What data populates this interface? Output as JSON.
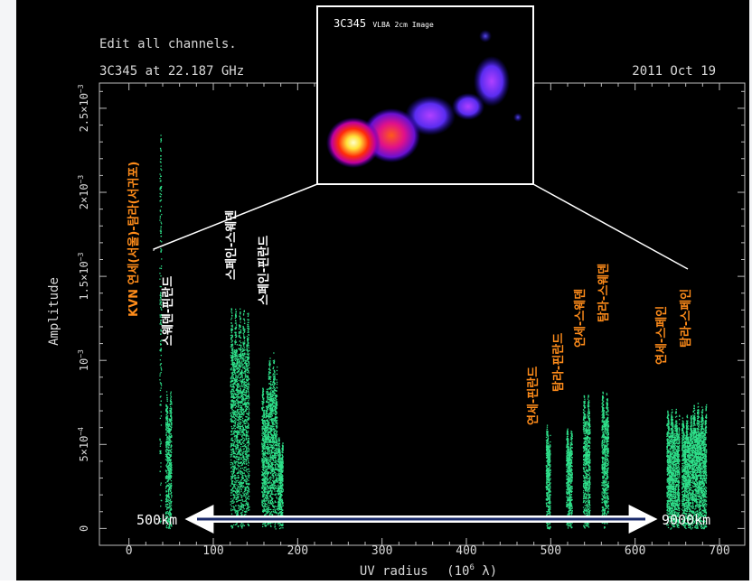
{
  "header": {
    "left_line1": "Edit all channels.",
    "left_line2": "3C345 at 22.187 GHz",
    "date": "2011 Oct 19"
  },
  "inset": {
    "title_source": "3C345",
    "title_rest": "VLBA 2cm Image"
  },
  "chart_data": {
    "type": "scatter",
    "xlabel_text": "UV radius",
    "xlabel_units": "(10",
    "xlabel_exp": "6",
    "xlabel_tail": " λ)",
    "ylabel": "Amplitude",
    "xlim": [
      -35,
      730
    ],
    "ylim": [
      -0.0001,
      0.00265
    ],
    "x_ticks": [
      0,
      100,
      200,
      300,
      400,
      500,
      600,
      700
    ],
    "y_ticks": [
      {
        "value": 0,
        "mant": "0",
        "exp": ""
      },
      {
        "value": 0.0005,
        "mant": "5×10",
        "exp": "−4"
      },
      {
        "value": 0.001,
        "mant": "10",
        "exp": "−3"
      },
      {
        "value": 0.0015,
        "mant": "1.5×10",
        "exp": "−3"
      },
      {
        "value": 0.002,
        "mant": "2×10",
        "exp": "−3"
      },
      {
        "value": 0.0025,
        "mant": "2.5×10",
        "exp": "−3"
      }
    ],
    "color": "#2fe08a",
    "clusters": [
      {
        "x": [
          36,
          38
        ],
        "y_max": 0.00235
      },
      {
        "x": [
          43,
          50
        ],
        "y_max": 0.00082
      },
      {
        "x": [
          120,
          142
        ],
        "y_max": 0.00132
      },
      {
        "x": [
          157,
          165
        ],
        "y_max": 0.00085
      },
      {
        "x": [
          165,
          175
        ],
        "y_max": 0.00105
      },
      {
        "x": [
          176,
          182
        ],
        "y_max": 0.00055
      },
      {
        "x": [
          494,
          499
        ],
        "y_max": 0.00062
      },
      {
        "x": [
          518,
          525
        ],
        "y_max": 0.0006
      },
      {
        "x": [
          538,
          546
        ],
        "y_max": 0.0008
      },
      {
        "x": [
          560,
          568
        ],
        "y_max": 0.00082
      },
      {
        "x": [
          637,
          652
        ],
        "y_max": 0.00072
      },
      {
        "x": [
          655,
          668
        ],
        "y_max": 0.00068
      },
      {
        "x": [
          668,
          684
        ],
        "y_max": 0.00075
      }
    ],
    "baseline_labels": [
      {
        "text": "KVN",
        "color": "#ff8c1a"
      },
      {
        "text": "연세(서울)-탐라(서귀포)",
        "color": "#ff8c1a"
      },
      {
        "text": "스웨덴-핀란드",
        "color": "#ffffff"
      },
      {
        "text": "스페인-스웨덴",
        "color": "#ffffff"
      },
      {
        "text": "스페인-핀란드",
        "color": "#ffffff"
      },
      {
        "text": "연세-핀란드",
        "color": "#ff8c1a"
      },
      {
        "text": "탐라-핀란드",
        "color": "#ff8c1a"
      },
      {
        "text": "연세-스웨덴",
        "color": "#ff8c1a"
      },
      {
        "text": "탐라-스웨덴",
        "color": "#ff8c1a"
      },
      {
        "text": "연세-스페인",
        "color": "#ff8c1a"
      },
      {
        "text": "탐라-스페인",
        "color": "#ff8c1a"
      }
    ],
    "distance_start": "500km",
    "distance_end": "9000km"
  }
}
